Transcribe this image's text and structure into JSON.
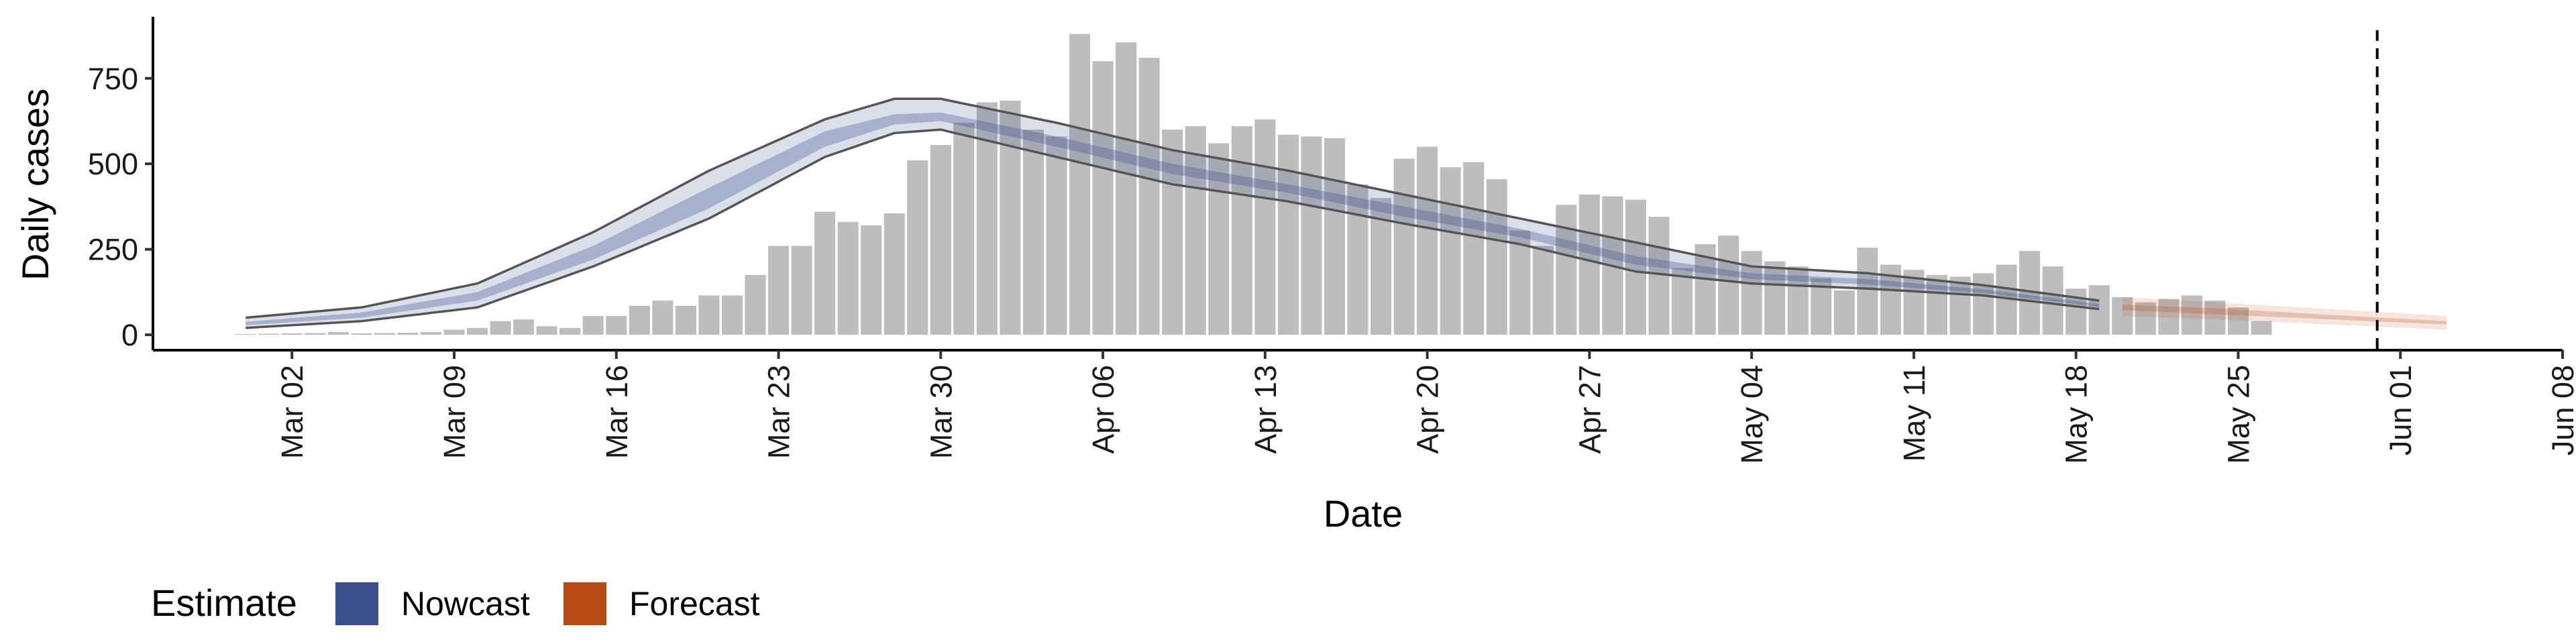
{
  "chart_data": {
    "type": "bar",
    "title": "",
    "xlabel": "Date",
    "ylabel": "Daily cases",
    "x_start": "2020-02-29",
    "x_range": [
      "2020-02-25",
      "2020-06-08"
    ],
    "ylim": [
      -45,
      930
    ],
    "y_ticks": [
      {
        "value": 0,
        "label": "0"
      },
      {
        "value": 250,
        "label": "250"
      },
      {
        "value": 500,
        "label": "500"
      },
      {
        "value": 750,
        "label": "750"
      }
    ],
    "x_ticks": [
      {
        "date": "2020-03-02",
        "label": "Mar 02"
      },
      {
        "date": "2020-03-09",
        "label": "Mar 09"
      },
      {
        "date": "2020-03-16",
        "label": "Mar 16"
      },
      {
        "date": "2020-03-23",
        "label": "Mar 23"
      },
      {
        "date": "2020-03-30",
        "label": "Mar 30"
      },
      {
        "date": "2020-04-06",
        "label": "Apr 06"
      },
      {
        "date": "2020-04-13",
        "label": "Apr 13"
      },
      {
        "date": "2020-04-20",
        "label": "Apr 20"
      },
      {
        "date": "2020-04-27",
        "label": "Apr 27"
      },
      {
        "date": "2020-05-04",
        "label": "May 04"
      },
      {
        "date": "2020-05-11",
        "label": "May 11"
      },
      {
        "date": "2020-05-18",
        "label": "May 18"
      },
      {
        "date": "2020-05-25",
        "label": "May 25"
      },
      {
        "date": "2020-06-01",
        "label": "Jun 01"
      },
      {
        "date": "2020-06-08",
        "label": "Jun 08"
      }
    ],
    "bars": {
      "color": "#bdbdbd",
      "values": [
        2,
        3,
        4,
        5,
        8,
        4,
        5,
        6,
        8,
        15,
        20,
        40,
        45,
        25,
        20,
        55,
        55,
        85,
        100,
        85,
        115,
        115,
        175,
        260,
        260,
        360,
        330,
        320,
        355,
        510,
        555,
        620,
        680,
        685,
        600,
        580,
        880,
        800,
        855,
        810,
        600,
        610,
        560,
        610,
        630,
        585,
        580,
        575,
        440,
        400,
        515,
        550,
        490,
        505,
        455,
        305,
        260,
        380,
        410,
        405,
        395,
        345,
        195,
        265,
        290,
        245,
        215,
        200,
        165,
        130,
        255,
        205,
        190,
        175,
        170,
        180,
        205,
        245,
        200,
        135,
        145,
        110,
        95,
        105,
        115,
        100,
        80,
        40
      ]
    },
    "series": [
      {
        "name": "Nowcast",
        "color": "#3a4f8c",
        "day_range": [
          0,
          80
        ],
        "key_days": [
          0,
          5,
          10,
          15,
          20,
          25,
          28,
          30,
          35,
          40,
          45,
          50,
          55,
          60,
          65,
          70,
          75,
          80
        ],
        "outer_upper": [
          50,
          80,
          150,
          300,
          480,
          630,
          690,
          690,
          620,
          540,
          480,
          410,
          340,
          270,
          200,
          180,
          145,
          100
        ],
        "outer_lower": [
          20,
          40,
          80,
          200,
          340,
          520,
          590,
          600,
          520,
          440,
          390,
          325,
          265,
          185,
          150,
          135,
          115,
          75
        ],
        "inner_upper": [
          38,
          65,
          125,
          260,
          430,
          595,
          645,
          650,
          580,
          500,
          440,
          375,
          310,
          230,
          180,
          163,
          133,
          90
        ],
        "inner_lower": [
          28,
          50,
          100,
          220,
          370,
          550,
          615,
          625,
          550,
          470,
          415,
          345,
          285,
          205,
          163,
          147,
          122,
          82
        ]
      },
      {
        "name": "Forecast",
        "color": "#b84a17",
        "day_range": [
          81,
          95
        ],
        "key_days": [
          81,
          85,
          90,
          95
        ],
        "outer_upper": [
          110,
          95,
          75,
          55
        ],
        "outer_lower": [
          55,
          45,
          30,
          15
        ],
        "inner_upper": [
          88,
          78,
          58,
          40
        ],
        "inner_lower": [
          72,
          60,
          45,
          30
        ]
      }
    ],
    "reference_line": {
      "date": "2020-05-31",
      "style": "dashed"
    },
    "legend": {
      "title": "Estimate",
      "position": "bottom-left",
      "items": [
        {
          "label": "Nowcast",
          "color": "#3a4f8c"
        },
        {
          "label": "Forecast",
          "color": "#b84a17"
        }
      ]
    }
  }
}
